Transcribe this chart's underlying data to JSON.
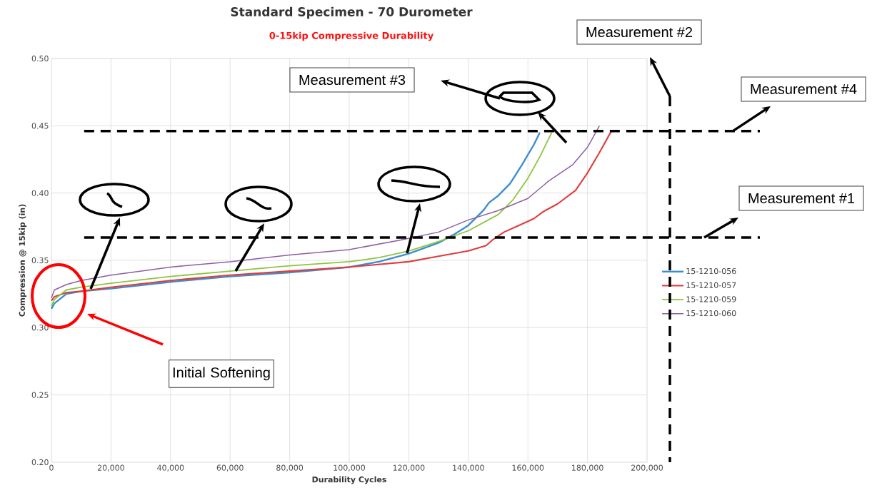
{
  "chart_data": {
    "type": "line",
    "title": "Standard Specimen - 70 Durometer",
    "subtitle": "0-15kip Compressive Durability",
    "xlabel": "Durability Cycles",
    "ylabel": "Compression @ 15kip (in)",
    "xlim": [
      0,
      200000
    ],
    "ylim": [
      0.2,
      0.5
    ],
    "xticks": [
      0,
      {
        "value": 20000,
        "label": "20,000"
      },
      {
        "value": 40000,
        "label": "40,000"
      },
      {
        "value": 60000,
        "label": "60,000"
      },
      {
        "value": 80000,
        "label": "80,000"
      },
      {
        "value": 100000,
        "label": "100,000"
      },
      {
        "value": 120000,
        "label": "120,000"
      },
      {
        "value": 140000,
        "label": "140,000"
      },
      {
        "value": 160000,
        "label": "160,000"
      },
      {
        "value": 180000,
        "label": "180,000"
      },
      {
        "value": 200000,
        "label": "200,000"
      }
    ],
    "yticks": [
      {
        "value": 0.2,
        "label": "0.20"
      },
      {
        "value": 0.25,
        "label": "0.25"
      },
      {
        "value": 0.3,
        "label": "0.30"
      },
      {
        "value": 0.35,
        "label": "0.35"
      },
      {
        "value": 0.4,
        "label": "0.40"
      },
      {
        "value": 0.45,
        "label": "0.45"
      },
      {
        "value": 0.5,
        "label": "0.50"
      }
    ],
    "grid": true,
    "legend": "right",
    "series": [
      {
        "name": "15-1210-056",
        "color": "#3c8dd0",
        "x": [
          0,
          1000,
          5000,
          10000,
          20000,
          40000,
          60000,
          80000,
          100000,
          110000,
          120000,
          130000,
          135000,
          140000,
          145000,
          147000,
          150000,
          154000,
          158000,
          162000,
          164000
        ],
        "values": [
          0.314,
          0.318,
          0.325,
          0.327,
          0.329,
          0.334,
          0.338,
          0.341,
          0.345,
          0.349,
          0.355,
          0.363,
          0.369,
          0.376,
          0.387,
          0.393,
          0.398,
          0.407,
          0.421,
          0.436,
          0.445
        ]
      },
      {
        "name": "15-1210-057",
        "color": "#e03c3c",
        "x": [
          0,
          1000,
          5000,
          10000,
          20000,
          40000,
          60000,
          80000,
          100000,
          120000,
          130000,
          140000,
          146000,
          148000,
          152000,
          157000,
          162000,
          165000,
          170000,
          176000,
          180000,
          184000,
          188000
        ],
        "values": [
          0.32,
          0.323,
          0.326,
          0.327,
          0.33,
          0.335,
          0.339,
          0.342,
          0.345,
          0.349,
          0.353,
          0.357,
          0.361,
          0.365,
          0.371,
          0.376,
          0.381,
          0.386,
          0.392,
          0.402,
          0.415,
          0.43,
          0.446
        ]
      },
      {
        "name": "15-1210-059",
        "color": "#8cc63f",
        "x": [
          0,
          1000,
          5000,
          10000,
          20000,
          40000,
          60000,
          80000,
          100000,
          110000,
          120000,
          130000,
          140000,
          150000,
          155000,
          160000,
          164000,
          168000
        ],
        "values": [
          0.316,
          0.321,
          0.328,
          0.33,
          0.333,
          0.338,
          0.342,
          0.346,
          0.349,
          0.352,
          0.357,
          0.364,
          0.372,
          0.384,
          0.395,
          0.411,
          0.427,
          0.445
        ]
      },
      {
        "name": "15-1210-060",
        "color": "#8e5ea2",
        "x": [
          0,
          1000,
          5000,
          10000,
          20000,
          40000,
          60000,
          80000,
          100000,
          117000,
          130000,
          140000,
          150000,
          160000,
          167000,
          175000,
          180000,
          184000
        ],
        "values": [
          0.322,
          0.328,
          0.332,
          0.335,
          0.339,
          0.345,
          0.349,
          0.354,
          0.358,
          0.365,
          0.371,
          0.38,
          0.387,
          0.396,
          0.409,
          0.421,
          0.434,
          0.45
        ]
      }
    ],
    "ref_lines": [
      {
        "axis": "y",
        "value": 0.446,
        "label": "Measurement #4",
        "color": "#000000",
        "line_style": "dashed"
      },
      {
        "axis": "y",
        "value": 0.367,
        "label": "Measurement #1",
        "color": "#000000",
        "line_style": "dashed"
      }
    ],
    "annotations": [
      "Measurement #2",
      "Measurement #3",
      "Initial Softening"
    ]
  }
}
